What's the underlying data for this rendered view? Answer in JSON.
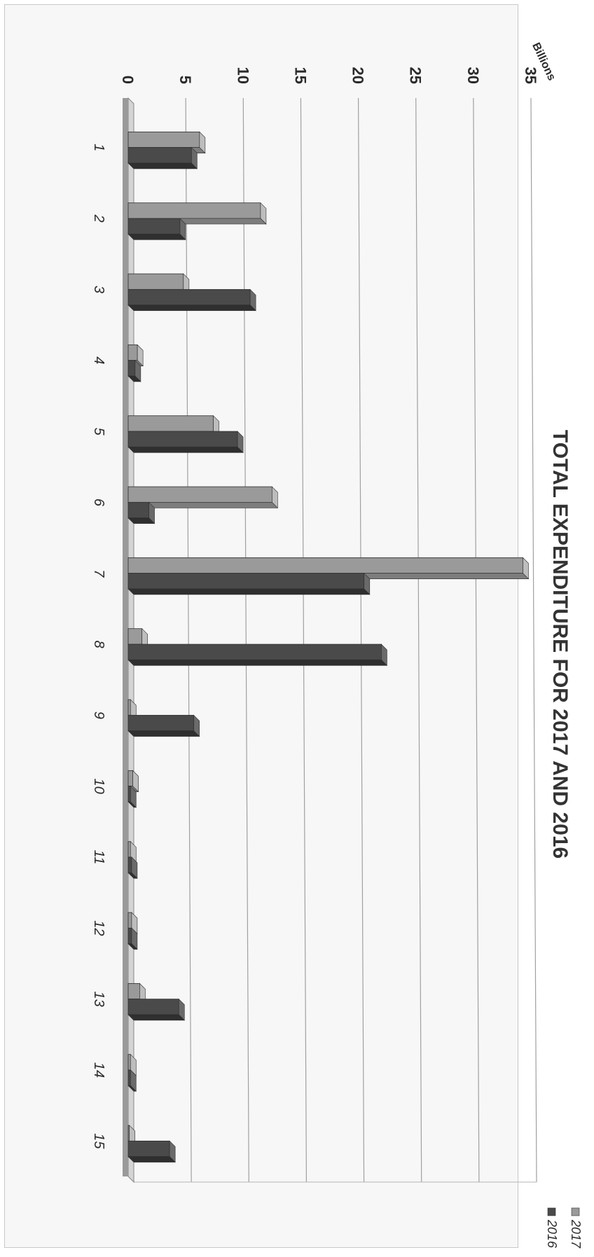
{
  "chart_data": {
    "type": "bar",
    "title": "TOTAL EXPENDITURE FOR 2017 AND 2016",
    "ylabel": "Billions",
    "xlabel": "",
    "ylim": [
      0,
      35
    ],
    "yticks": [
      "0",
      "5",
      "10",
      "15",
      "20",
      "25",
      "30",
      "35"
    ],
    "categories": [
      "1",
      "2",
      "3",
      "4",
      "5",
      "6",
      "7",
      "8",
      "9",
      "10",
      "11",
      "12",
      "13",
      "14",
      "15"
    ],
    "series": [
      {
        "name": "2017",
        "color": "#9a9a9a",
        "values": [
          6.2,
          11.5,
          4.8,
          0.8,
          7.4,
          12.5,
          34.3,
          1.2,
          0.2,
          0.4,
          0.2,
          0.3,
          1.0,
          0.2,
          0.1
        ]
      },
      {
        "name": "2016",
        "color": "#4a4a4a",
        "values": [
          5.5,
          4.5,
          10.6,
          0.6,
          9.5,
          1.8,
          20.5,
          22.0,
          5.7,
          0.2,
          0.3,
          0.3,
          4.4,
          0.2,
          3.6
        ]
      }
    ],
    "grid": true,
    "legend": "top-right"
  }
}
